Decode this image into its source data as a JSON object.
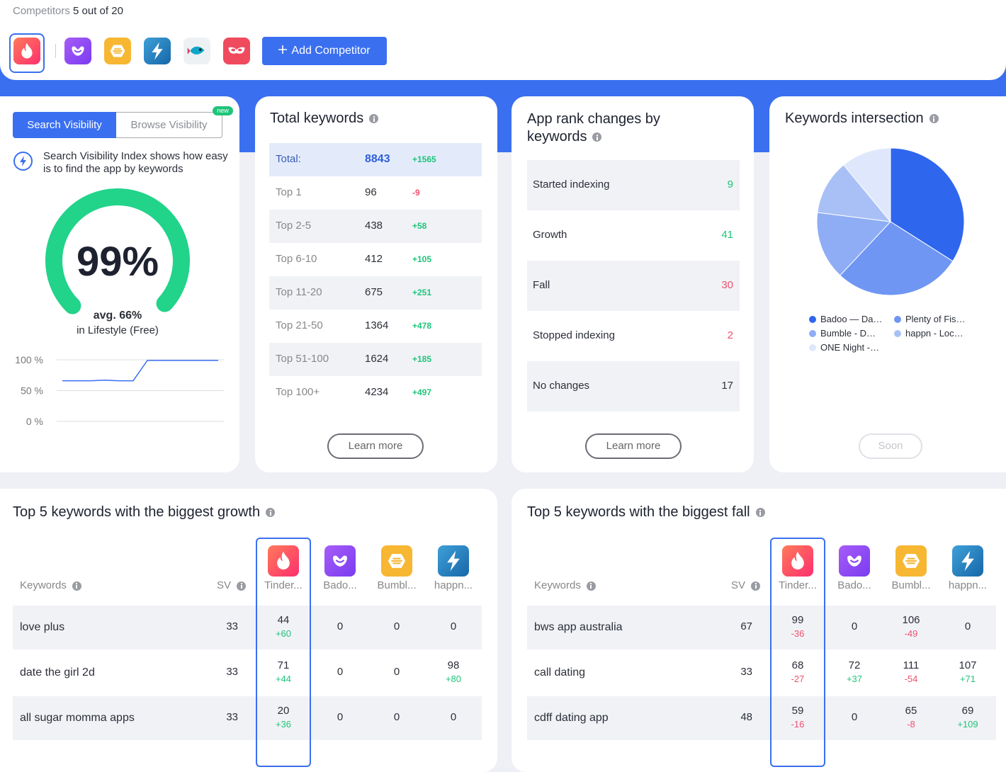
{
  "header": {
    "label": "Competitors",
    "count": "5 out of 20",
    "add_button": "Add Competitor"
  },
  "visibility": {
    "tabs": [
      "Search Visibility",
      "Browse Visibility"
    ],
    "badge": "new",
    "description": "Search Visibility Index shows how easy is to find the app by keywords",
    "gauge": {
      "value": 99,
      "label": "99%"
    },
    "average": "avg. 66%",
    "category": "in Lifestyle (Free)",
    "chart": {
      "type": "line",
      "values": [
        66,
        66,
        66,
        67,
        66,
        66,
        99,
        99,
        99,
        99,
        99,
        99
      ],
      "ylim": [
        0,
        100
      ],
      "yticks": [
        {
          "value": 100,
          "label": "100 %"
        },
        {
          "value": 50,
          "label": "50 %"
        },
        {
          "value": 0,
          "label": "0 %"
        }
      ],
      "color": "#3a6ff0"
    }
  },
  "total_keywords": {
    "title": "Total keywords",
    "rows": [
      {
        "label": "Total:",
        "value": 8843,
        "change": "+1565"
      },
      {
        "label": "Top 1",
        "value": 96,
        "change": "-9"
      },
      {
        "label": "Top 2-5",
        "value": 438,
        "change": "+58"
      },
      {
        "label": "Top 6-10",
        "value": 412,
        "change": "+105"
      },
      {
        "label": "Top 11-20",
        "value": 675,
        "change": "+251"
      },
      {
        "label": "Top 21-50",
        "value": 1364,
        "change": "+478"
      },
      {
        "label": "Top 51-100",
        "value": 1624,
        "change": "+185"
      },
      {
        "label": "Top 100+",
        "value": 4234,
        "change": "+497"
      }
    ],
    "button": "Learn more"
  },
  "rank_changes": {
    "title": "App rank changes by keywords",
    "rows": [
      {
        "label": "Started indexing",
        "value": 9,
        "color": "#1fc47a"
      },
      {
        "label": "Growth",
        "value": 41,
        "color": "#1fc47a"
      },
      {
        "label": "Fall",
        "value": 30,
        "color": "#f0506e"
      },
      {
        "label": "Stopped indexing",
        "value": 2,
        "color": "#f0506e"
      },
      {
        "label": "No changes",
        "value": 17,
        "color": "#333333"
      }
    ],
    "button": "Learn more"
  },
  "intersection": {
    "title": "Keywords intersection",
    "chart": {
      "type": "pie",
      "categories": [
        "Badoo — Da…",
        "Plenty of Fis…",
        "Bumble - D…",
        "happn - Loc…",
        "ONE Night -…"
      ],
      "values": [
        34,
        28,
        15,
        12,
        11
      ],
      "colors": [
        "#2f66ee",
        "#6f96f3",
        "#8fadf5",
        "#a9c0f7",
        "#dfe7fc"
      ]
    },
    "button": "Soon"
  },
  "growth": {
    "title": "Top 5 keywords with the biggest growth",
    "columns": [
      "Keywords",
      "SV",
      "Tinder...",
      "Bado...",
      "Bumbl...",
      "happn..."
    ],
    "rows": [
      {
        "keyword": "love plus",
        "sv": 33,
        "cells": [
          {
            "value": 44,
            "change": "+60"
          },
          {
            "value": 0
          },
          {
            "value": 0
          },
          {
            "value": 0
          }
        ]
      },
      {
        "keyword": "date the girl 2d",
        "sv": 33,
        "cells": [
          {
            "value": 71,
            "change": "+44"
          },
          {
            "value": 0
          },
          {
            "value": 0
          },
          {
            "value": 98,
            "change": "+80"
          }
        ]
      },
      {
        "keyword": "all sugar momma apps",
        "sv": 33,
        "cells": [
          {
            "value": 20,
            "change": "+36"
          },
          {
            "value": 0
          },
          {
            "value": 0
          },
          {
            "value": 0
          }
        ]
      }
    ]
  },
  "fall": {
    "title": "Top 5 keywords with the biggest fall",
    "columns": [
      "Keywords",
      "SV",
      "Tinder...",
      "Bado...",
      "Bumbl...",
      "happn..."
    ],
    "rows": [
      {
        "keyword": "bws app australia",
        "sv": 67,
        "cells": [
          {
            "value": 99,
            "change": "-36"
          },
          {
            "value": 0
          },
          {
            "value": 106,
            "change": "-49"
          },
          {
            "value": 0
          }
        ]
      },
      {
        "keyword": "call dating",
        "sv": 33,
        "cells": [
          {
            "value": 68,
            "change": "-27"
          },
          {
            "value": 72,
            "change": "+37"
          },
          {
            "value": 111,
            "change": "-54"
          },
          {
            "value": 107,
            "change": "+71"
          }
        ]
      },
      {
        "keyword": "cdff dating app",
        "sv": 48,
        "cells": [
          {
            "value": 59,
            "change": "-16"
          },
          {
            "value": 0
          },
          {
            "value": 65,
            "change": "-8"
          },
          {
            "value": 69,
            "change": "+109"
          }
        ]
      }
    ]
  }
}
